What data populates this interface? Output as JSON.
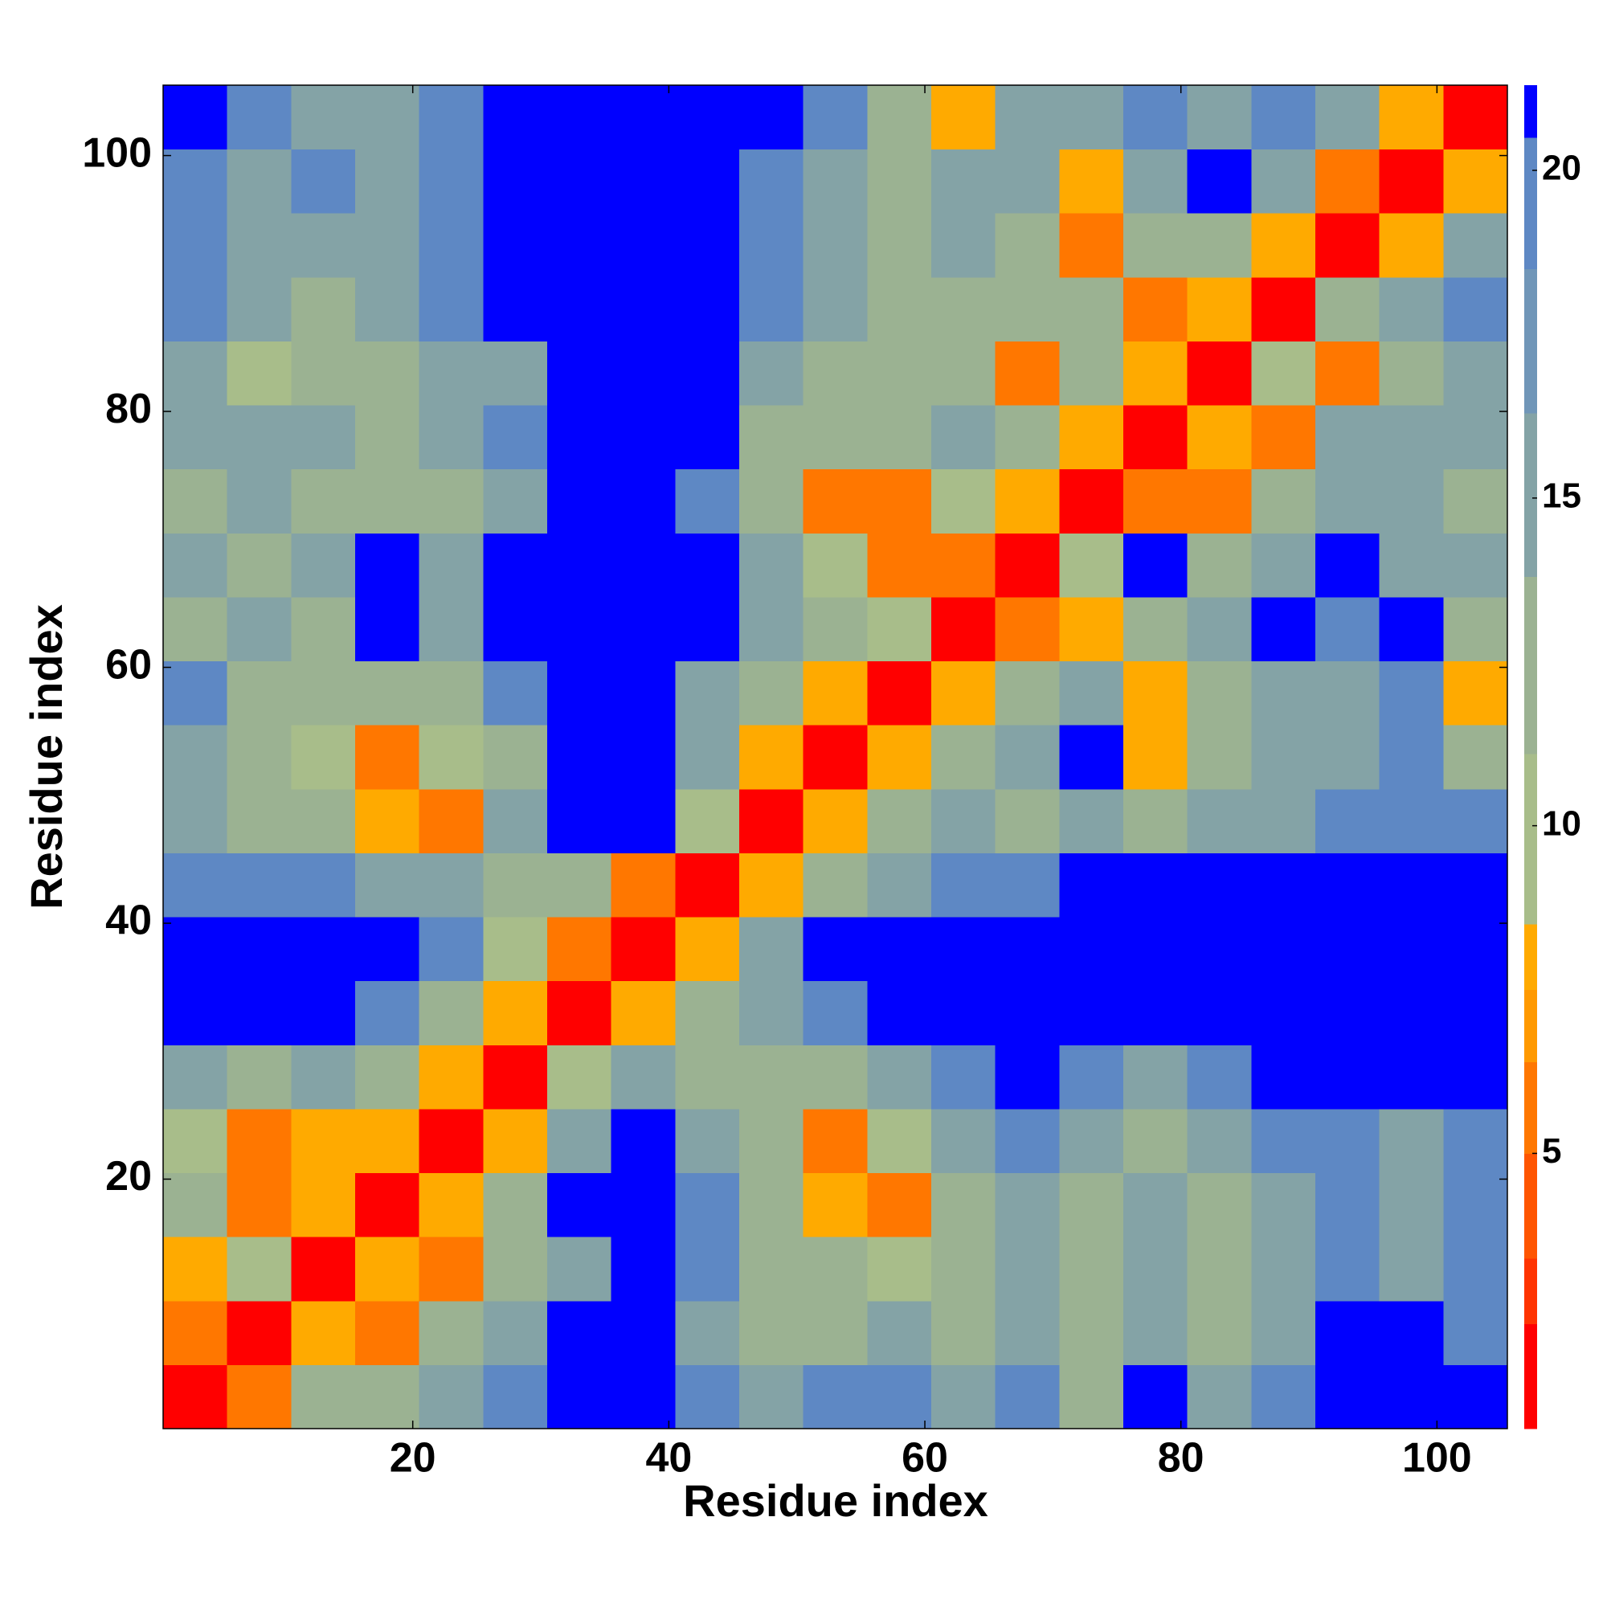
{
  "chart_data": {
    "type": "heatmap",
    "x_label": "Residue index",
    "y_label": "Residue index",
    "x": [
      3,
      8,
      13,
      18,
      23,
      28,
      33,
      38,
      43,
      48,
      53,
      58,
      63,
      68,
      73,
      78,
      83,
      88,
      93,
      98,
      103
    ],
    "y": [
      3,
      8,
      13,
      18,
      23,
      28,
      33,
      38,
      43,
      48,
      53,
      58,
      63,
      68,
      73,
      78,
      83,
      88,
      93,
      98,
      103
    ],
    "cell_size": 5,
    "z": [
      [
        1,
        6,
        13,
        13,
        16,
        19,
        21,
        21,
        19,
        16,
        19,
        19,
        16,
        19,
        13,
        21,
        16,
        19,
        21,
        21,
        21
      ],
      [
        6,
        1,
        8,
        6,
        13,
        16,
        21,
        21,
        16,
        13,
        13,
        16,
        13,
        16,
        13,
        16,
        13,
        16,
        21,
        21,
        19
      ],
      [
        8,
        10,
        1,
        8,
        6,
        13,
        16,
        21,
        19,
        13,
        13,
        10,
        13,
        16,
        13,
        16,
        13,
        16,
        19,
        16,
        19
      ],
      [
        13,
        6,
        8,
        1,
        8,
        13,
        21,
        21,
        19,
        13,
        8,
        6,
        13,
        16,
        13,
        16,
        13,
        16,
        19,
        16,
        19
      ],
      [
        10,
        6,
        8,
        8,
        1,
        8,
        16,
        21,
        16,
        13,
        6,
        10,
        16,
        19,
        16,
        13,
        16,
        19,
        19,
        16,
        19
      ],
      [
        16,
        13,
        16,
        13,
        8,
        1,
        10,
        16,
        13,
        13,
        13,
        16,
        19,
        21,
        19,
        16,
        19,
        21,
        21,
        21,
        21
      ],
      [
        21,
        21,
        21,
        19,
        13,
        8,
        1,
        8,
        13,
        16,
        19,
        21,
        21,
        21,
        21,
        21,
        21,
        21,
        21,
        21,
        21
      ],
      [
        21,
        21,
        21,
        21,
        19,
        10,
        6,
        1,
        8,
        16,
        21,
        21,
        21,
        21,
        21,
        21,
        21,
        21,
        21,
        21,
        21
      ],
      [
        19,
        19,
        19,
        16,
        16,
        13,
        13,
        6,
        1,
        8,
        13,
        16,
        19,
        19,
        21,
        21,
        21,
        21,
        21,
        21,
        21
      ],
      [
        16,
        13,
        13,
        8,
        6,
        16,
        21,
        21,
        10,
        1,
        8,
        13,
        16,
        13,
        16,
        13,
        16,
        16,
        19,
        19,
        19
      ],
      [
        16,
        13,
        10,
        6,
        10,
        13,
        21,
        21,
        16,
        8,
        1,
        8,
        13,
        16,
        21,
        8,
        13,
        16,
        16,
        19,
        13
      ],
      [
        19,
        13,
        13,
        13,
        13,
        19,
        21,
        21,
        16,
        13,
        8,
        1,
        8,
        13,
        16,
        8,
        13,
        16,
        16,
        19,
        8
      ],
      [
        13,
        16,
        13,
        21,
        16,
        21,
        21,
        21,
        21,
        16,
        13,
        10,
        1,
        6,
        8,
        13,
        16,
        21,
        19,
        21,
        13
      ],
      [
        16,
        13,
        16,
        21,
        16,
        21,
        21,
        21,
        21,
        16,
        10,
        6,
        6,
        1,
        10,
        21,
        13,
        16,
        21,
        16,
        16
      ],
      [
        13,
        16,
        13,
        13,
        13,
        16,
        21,
        21,
        19,
        13,
        6,
        6,
        10,
        8,
        1,
        6,
        6,
        13,
        16,
        16,
        13
      ],
      [
        16,
        16,
        16,
        13,
        16,
        19,
        21,
        21,
        21,
        13,
        13,
        13,
        16,
        13,
        8,
        1,
        8,
        6,
        16,
        16,
        16
      ],
      [
        16,
        10,
        13,
        13,
        16,
        16,
        21,
        21,
        21,
        16,
        13,
        13,
        13,
        6,
        13,
        8,
        1,
        10,
        6,
        13,
        16
      ],
      [
        19,
        16,
        13,
        16,
        19,
        21,
        21,
        21,
        21,
        19,
        16,
        13,
        13,
        13,
        13,
        6,
        8,
        1,
        13,
        16,
        19
      ],
      [
        19,
        16,
        16,
        16,
        19,
        21,
        21,
        21,
        21,
        19,
        16,
        13,
        16,
        13,
        6,
        13,
        13,
        8,
        1,
        8,
        16
      ],
      [
        19,
        16,
        19,
        16,
        19,
        21,
        21,
        21,
        21,
        19,
        16,
        13,
        16,
        16,
        8,
        16,
        21,
        16,
        6,
        1,
        8
      ],
      [
        21,
        19,
        16,
        16,
        19,
        21,
        21,
        21,
        21,
        21,
        19,
        13,
        8,
        16,
        16,
        19,
        16,
        19,
        16,
        8,
        1
      ]
    ],
    "xlim": [
      0.5,
      105.5
    ],
    "ylim": [
      0.5,
      105.5
    ],
    "xticks": [
      20,
      40,
      60,
      80,
      100
    ],
    "yticks": [
      20,
      40,
      60,
      80,
      100
    ],
    "zlim": [
      0.8,
      21.3
    ],
    "zticks": [
      5,
      10,
      15,
      20
    ],
    "colorscale": [
      {
        "max": 2.4,
        "color": "#ff0000"
      },
      {
        "max": 3.4,
        "color": "#ff3300"
      },
      {
        "max": 5.0,
        "color": "#ff5500"
      },
      {
        "max": 6.4,
        "color": "#ff7700"
      },
      {
        "max": 7.5,
        "color": "#ff9900"
      },
      {
        "max": 8.5,
        "color": "#ffaa00"
      },
      {
        "max": 11.1,
        "color": "#a8bd8a"
      },
      {
        "max": 13.8,
        "color": "#9bb292"
      },
      {
        "max": 16.3,
        "color": "#84a3a6"
      },
      {
        "max": 18.5,
        "color": "#7096b8"
      },
      {
        "max": 20.5,
        "color": "#5e88c4"
      },
      {
        "max": 21.3,
        "color": "#0000ff"
      }
    ]
  }
}
